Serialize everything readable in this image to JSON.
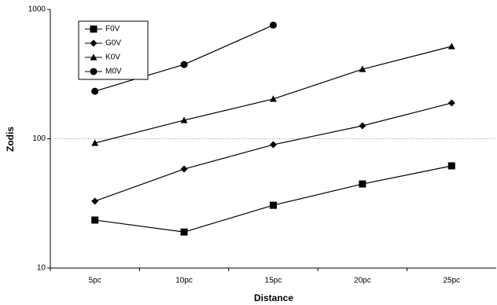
{
  "chart_data": {
    "type": "line",
    "x_label": "Distance",
    "y_label": "Zodis",
    "categories": [
      "5pc",
      "10pc",
      "15pc",
      "20pc",
      "25pc"
    ],
    "series": [
      {
        "name": "F0V",
        "color": "#000000",
        "marker": "square",
        "values": [
          23.5,
          19,
          30.6,
          44.7,
          61.7
        ]
      },
      {
        "name": "G0V",
        "color": "#000000",
        "marker": "diamond",
        "values": [
          32.9,
          58.3,
          90,
          126,
          189
        ]
      },
      {
        "name": "K0V",
        "color": "#000000",
        "marker": "triangle",
        "values": [
          92.6,
          139,
          203,
          345,
          518
        ]
      },
      {
        "name": "M0V",
        "color": "#000000",
        "marker": "circle",
        "values": [
          233,
          375,
          756,
          null,
          null
        ]
      }
    ],
    "ylim": [
      10,
      1000
    ],
    "yticks": [
      10,
      100,
      1000
    ],
    "log_y": true,
    "grid": true,
    "legend": "top-left"
  }
}
